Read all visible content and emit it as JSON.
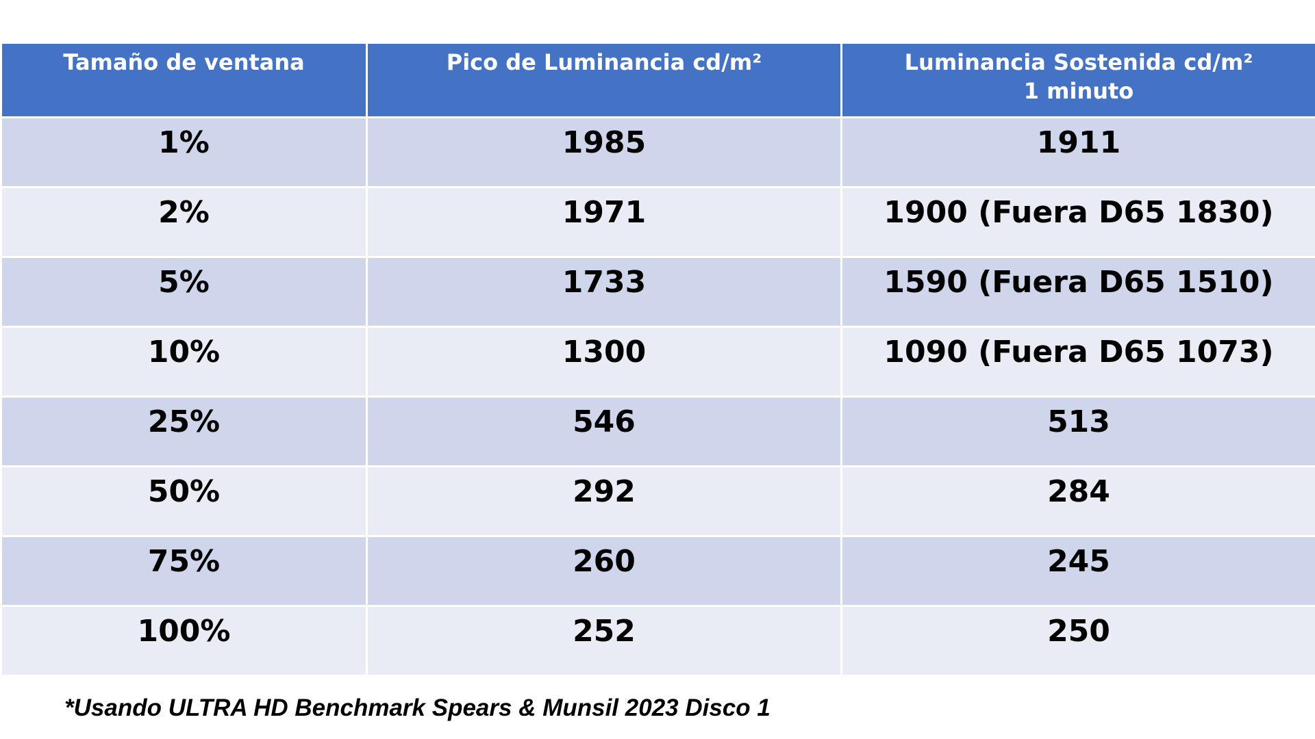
{
  "table": {
    "header": [
      [
        "Tamaño de ventana"
      ],
      [
        "Pico de Luminancia cd/m²"
      ],
      [
        "Luminancia Sostenida cd/m²",
        "1 minuto"
      ]
    ],
    "rows": [
      [
        "1%",
        "1985",
        "1911"
      ],
      [
        "2%",
        "1971",
        "1900 (Fuera D65 1830)"
      ],
      [
        "5%",
        "1733",
        "1590 (Fuera D65 1510)"
      ],
      [
        "10%",
        "1300",
        "1090 (Fuera D65 1073)"
      ],
      [
        "25%",
        "546",
        "513"
      ],
      [
        "50%",
        "292",
        "284"
      ],
      [
        "75%",
        "260",
        "245"
      ],
      [
        "100%",
        "252",
        "250"
      ]
    ]
  },
  "footnote": "*Usando ULTRA HD Benchmark Spears & Munsil 2023 Disco 1"
}
